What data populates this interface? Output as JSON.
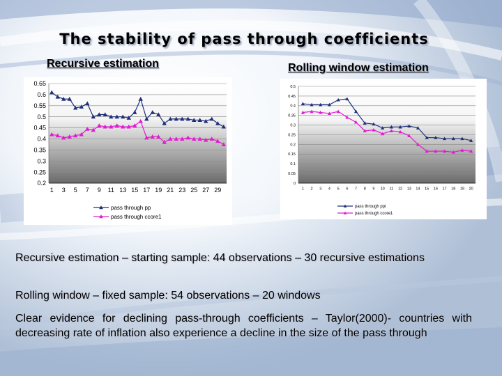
{
  "slide": {
    "title": "The stability of pass through coefficients",
    "left_heading": "Recursive estimation",
    "right_heading": "Rolling window estimation",
    "paragraphs": [
      "Recursive estimation – starting sample: 44 observations – 30 recursive estimations",
      "Rolling window – fixed sample: 54 observations – 20 windows",
      "Clear evidence for declining pass-through coefficients – Taylor(2000)- countries with decreasing rate of inflation also experience a decline in the size of the pass through"
    ]
  },
  "chart_data": [
    {
      "type": "line",
      "title": "",
      "xlabel": "",
      "ylabel": "",
      "x_ticks": [
        "1",
        "3",
        "5",
        "7",
        "9",
        "11",
        "13",
        "15",
        "17",
        "19",
        "21",
        "23",
        "25",
        "27",
        "29"
      ],
      "x_count": 30,
      "ylim": [
        0.2,
        0.65
      ],
      "y_ticks": [
        "0.65",
        "0.6",
        "0.55",
        "0.5",
        "0.45",
        "0.4",
        "0.35",
        "0.3",
        "0.25",
        "0.2"
      ],
      "y_tick_values": [
        0.65,
        0.6,
        0.55,
        0.5,
        0.45,
        0.4,
        0.35,
        0.3,
        0.25,
        0.2
      ],
      "grid": true,
      "legend": "bottom",
      "series": [
        {
          "name": "pass through pp",
          "color": "#1f2f7a",
          "marker": "triangle",
          "values": [
            0.61,
            0.59,
            0.58,
            0.58,
            0.54,
            0.545,
            0.56,
            0.5,
            0.51,
            0.51,
            0.5,
            0.5,
            0.5,
            0.495,
            0.52,
            0.58,
            0.49,
            0.52,
            0.51,
            0.47,
            0.49,
            0.49,
            0.49,
            0.49,
            0.485,
            0.485,
            0.48,
            0.49,
            0.47,
            0.455
          ]
        },
        {
          "name": "pass through ccore1",
          "color": "#e21bd1",
          "marker": "triangle",
          "values": [
            0.42,
            0.415,
            0.405,
            0.41,
            0.415,
            0.42,
            0.445,
            0.44,
            0.46,
            0.455,
            0.455,
            0.46,
            0.455,
            0.455,
            0.46,
            0.48,
            0.405,
            0.41,
            0.41,
            0.385,
            0.4,
            0.4,
            0.4,
            0.405,
            0.4,
            0.4,
            0.395,
            0.4,
            0.39,
            0.375
          ]
        }
      ]
    },
    {
      "type": "line",
      "title": "",
      "xlabel": "",
      "ylabel": "",
      "x_ticks": [
        "1",
        "2",
        "3",
        "4",
        "5",
        "6",
        "7",
        "8",
        "9",
        "10",
        "11",
        "12",
        "13",
        "14",
        "15",
        "16",
        "17",
        "18",
        "19",
        "20"
      ],
      "x_count": 20,
      "ylim": [
        0,
        0.5
      ],
      "y_ticks": [
        "0.5",
        "0.45",
        "0.4",
        "0.35",
        "0.3",
        "0.25",
        "0.2",
        "0.15",
        "0.1",
        "0.05",
        "0"
      ],
      "y_tick_values": [
        0.5,
        0.45,
        0.4,
        0.35,
        0.3,
        0.25,
        0.2,
        0.15,
        0.1,
        0.05,
        0
      ],
      "grid": true,
      "legend": "bottom",
      "series": [
        {
          "name": "pass through ppi",
          "color": "#1f2f7a",
          "marker": "triangle",
          "values": [
            0.41,
            0.405,
            0.405,
            0.405,
            0.43,
            0.435,
            0.37,
            0.31,
            0.305,
            0.285,
            0.29,
            0.29,
            0.295,
            0.285,
            0.235,
            0.235,
            0.23,
            0.23,
            0.23,
            0.22
          ]
        },
        {
          "name": "pass through ccore1",
          "color": "#e21bd1",
          "marker": "triangle",
          "values": [
            0.365,
            0.37,
            0.365,
            0.36,
            0.37,
            0.34,
            0.315,
            0.27,
            0.275,
            0.255,
            0.27,
            0.265,
            0.245,
            0.2,
            0.165,
            0.165,
            0.165,
            0.16,
            0.17,
            0.165
          ]
        }
      ]
    }
  ]
}
